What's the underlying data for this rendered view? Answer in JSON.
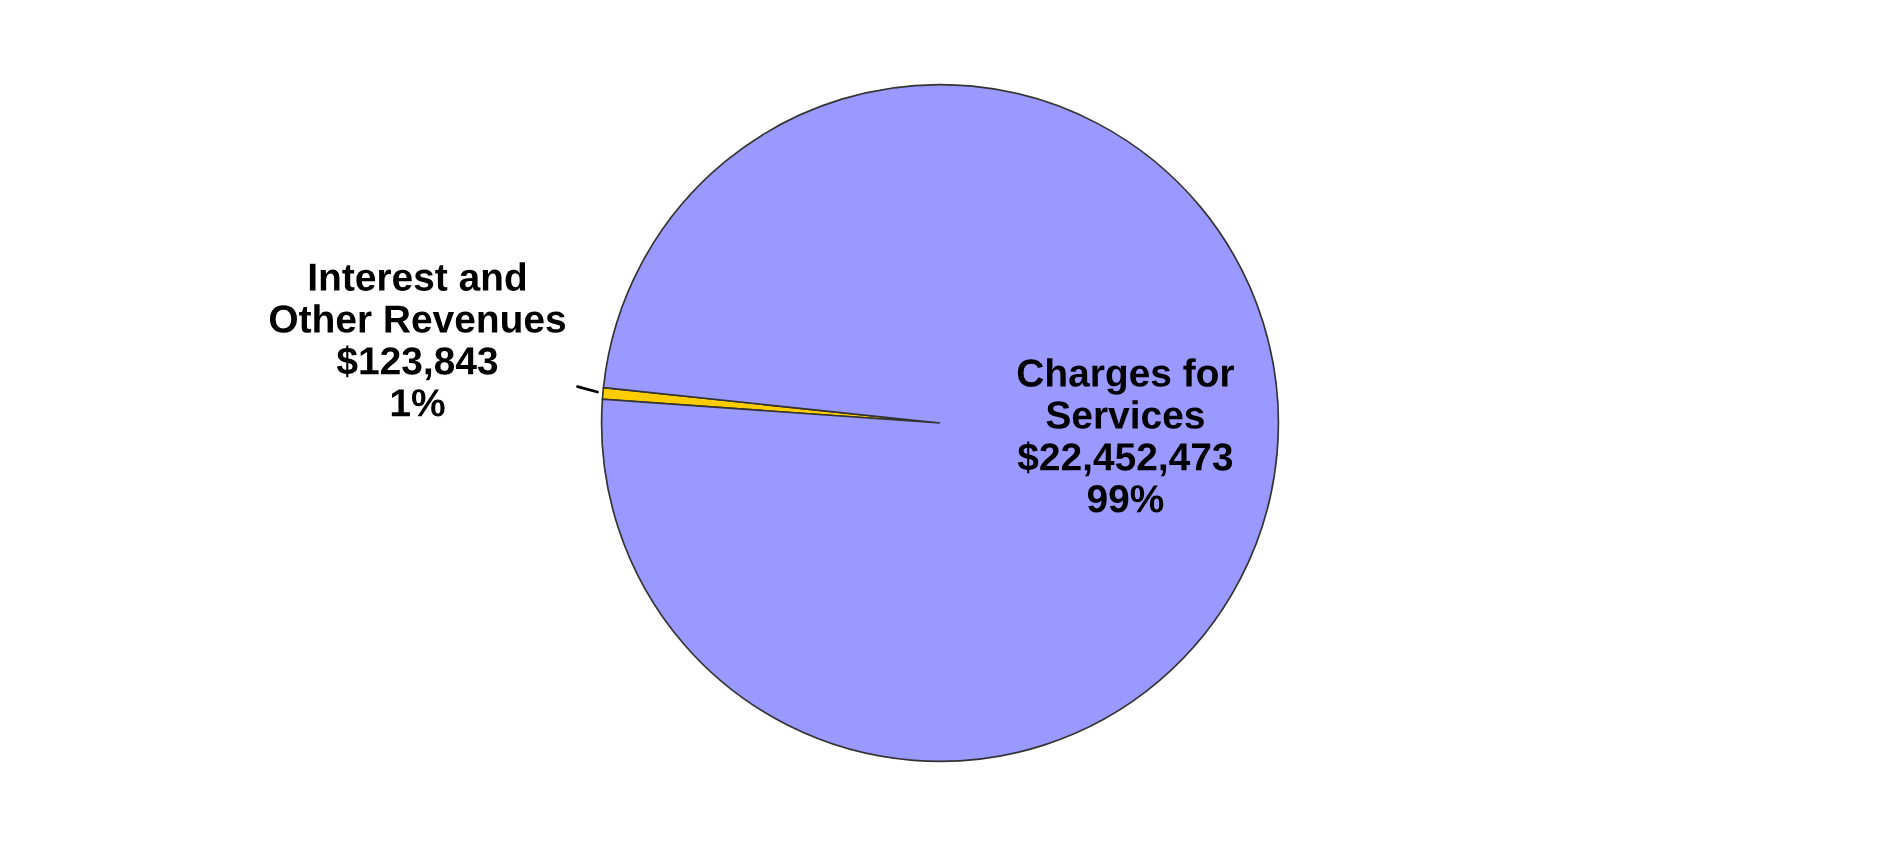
{
  "chart_data": {
    "type": "pie",
    "categories": [
      "Interest and\nOther Revenues",
      "Charges for\nServices"
    ],
    "values": [
      123843,
      22452473
    ],
    "colors": [
      "#ffcc00",
      "#9999ff"
    ],
    "value_labels": [
      "$123,843\n1%",
      "$22,452,473\n99%"
    ],
    "legend": false
  }
}
